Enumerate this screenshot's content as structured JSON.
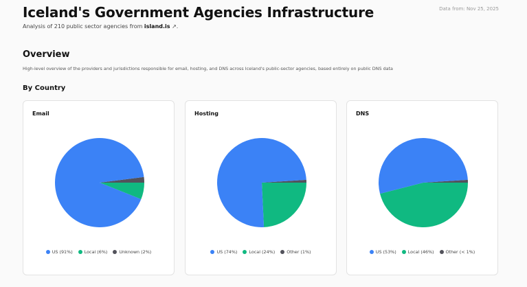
{
  "header": {
    "title": "Iceland's Government Agencies Infrastructure",
    "data_from": "Data from: Nov 25, 2025",
    "subtitle_prefix": "Analysis of 210 public sector agencies from ",
    "subtitle_link": "island.is",
    "subtitle_suffix": "."
  },
  "overview": {
    "title": "Overview",
    "description": "High-level overview of the providers and jurisdictions responsible for email, hosting, and DNS across Iceland's public-sector agencies, based entirely on public DNS data"
  },
  "by_country": {
    "title": "By Country"
  },
  "colors": {
    "us": "#3b82f6",
    "local": "#10b981",
    "other": "#52525b"
  },
  "chart_data": [
    {
      "type": "pie",
      "title": "Email",
      "slices": [
        {
          "key": "us",
          "label": "US (91%)",
          "value": 91
        },
        {
          "key": "local",
          "label": "Local (6%)",
          "value": 6
        },
        {
          "key": "other",
          "label": "Unknown (2%)",
          "value": 2
        }
      ]
    },
    {
      "type": "pie",
      "title": "Hosting",
      "slices": [
        {
          "key": "us",
          "label": "US (74%)",
          "value": 74
        },
        {
          "key": "local",
          "label": "Local (24%)",
          "value": 24
        },
        {
          "key": "other",
          "label": "Other (1%)",
          "value": 1
        }
      ]
    },
    {
      "type": "pie",
      "title": "DNS",
      "slices": [
        {
          "key": "us",
          "label": "US (53%)",
          "value": 53
        },
        {
          "key": "local",
          "label": "Local (46%)",
          "value": 46
        },
        {
          "key": "other",
          "label": "Other (< 1%)",
          "value": 1
        }
      ]
    }
  ]
}
